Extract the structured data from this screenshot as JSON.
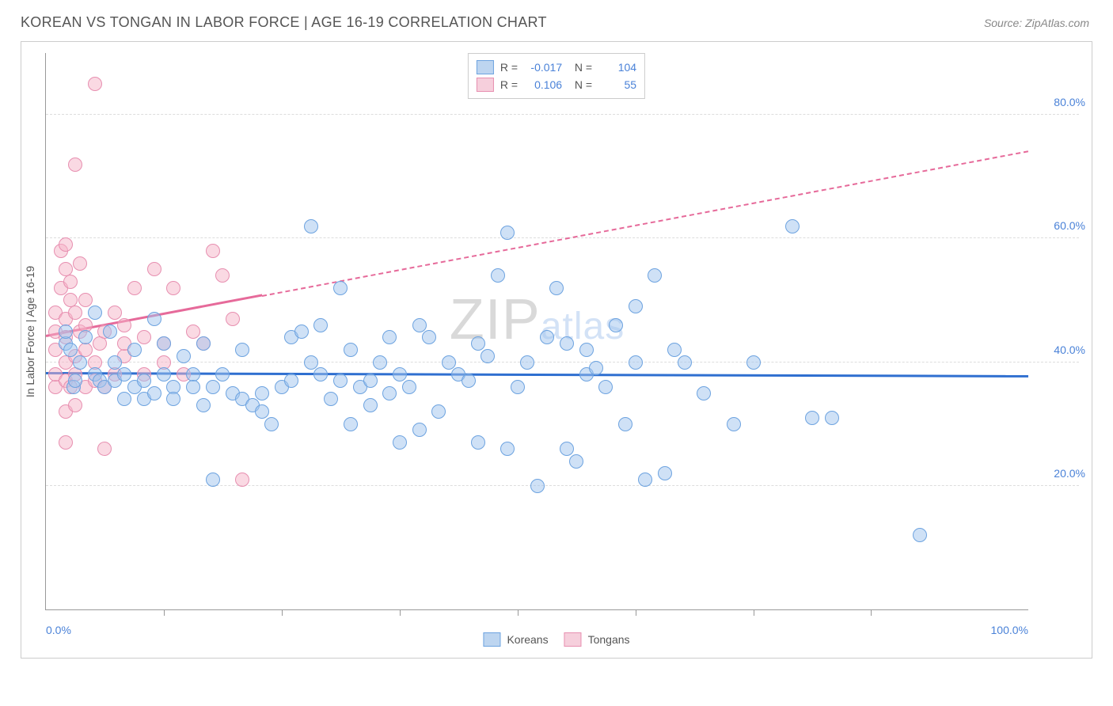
{
  "header": {
    "title": "KOREAN VS TONGAN IN LABOR FORCE | AGE 16-19 CORRELATION CHART",
    "source": "Source: ZipAtlas.com"
  },
  "chart": {
    "type": "scatter",
    "y_axis_label": "In Labor Force | Age 16-19",
    "xlim": [
      0,
      100
    ],
    "ylim": [
      0,
      90
    ],
    "x_tick_labels": {
      "0": "0.0%",
      "100": "100.0%"
    },
    "x_ticks_minor": [
      12,
      24,
      36,
      48,
      60,
      72,
      84
    ],
    "y_ticks": [
      20,
      40,
      60,
      80
    ],
    "y_tick_labels": {
      "20": "20.0%",
      "40": "40.0%",
      "60": "60.0%",
      "80": "80.0%"
    },
    "grid_color": "#dddddd",
    "background_color": "#ffffff",
    "series": {
      "korean": {
        "label": "Koreans",
        "fill_color": "rgba(159,195,237,0.5)",
        "stroke_color": "#6da3e0",
        "R": "-0.017",
        "N": "104",
        "regression": {
          "x1": 0,
          "y1": 38,
          "x2": 100,
          "y2": 37.5,
          "color": "#2f6fd0",
          "dashed_from_x": null
        },
        "points": [
          [
            2,
            43
          ],
          [
            2.5,
            42
          ],
          [
            2,
            45
          ],
          [
            2.8,
            36
          ],
          [
            3,
            37
          ],
          [
            3.5,
            40
          ],
          [
            4,
            44
          ],
          [
            5,
            38
          ],
          [
            5,
            48
          ],
          [
            5.5,
            37
          ],
          [
            6,
            36
          ],
          [
            6.5,
            45
          ],
          [
            7,
            37
          ],
          [
            7,
            40
          ],
          [
            8,
            38
          ],
          [
            8,
            34
          ],
          [
            9,
            42
          ],
          [
            9,
            36
          ],
          [
            10,
            37
          ],
          [
            10,
            34
          ],
          [
            11,
            35
          ],
          [
            11,
            47
          ],
          [
            12,
            43
          ],
          [
            12,
            38
          ],
          [
            13,
            36
          ],
          [
            13,
            34
          ],
          [
            14,
            41
          ],
          [
            15,
            38
          ],
          [
            15,
            36
          ],
          [
            16,
            43
          ],
          [
            16,
            33
          ],
          [
            17,
            36
          ],
          [
            17,
            21
          ],
          [
            18,
            38
          ],
          [
            19,
            35
          ],
          [
            20,
            42
          ],
          [
            20,
            34
          ],
          [
            21,
            33
          ],
          [
            22,
            35
          ],
          [
            22,
            32
          ],
          [
            23,
            30
          ],
          [
            24,
            36
          ],
          [
            25,
            37
          ],
          [
            25,
            44
          ],
          [
            26,
            45
          ],
          [
            27,
            62
          ],
          [
            27,
            40
          ],
          [
            28,
            38
          ],
          [
            28,
            46
          ],
          [
            29,
            34
          ],
          [
            30,
            52
          ],
          [
            30,
            37
          ],
          [
            31,
            42
          ],
          [
            31,
            30
          ],
          [
            32,
            36
          ],
          [
            33,
            37
          ],
          [
            34,
            40
          ],
          [
            35,
            44
          ],
          [
            35,
            35
          ],
          [
            36,
            27
          ],
          [
            36,
            38
          ],
          [
            37,
            36
          ],
          [
            38,
            46
          ],
          [
            38,
            29
          ],
          [
            39,
            44
          ],
          [
            40,
            32
          ],
          [
            41,
            40
          ],
          [
            42,
            38
          ],
          [
            43,
            37
          ],
          [
            44,
            27
          ],
          [
            44,
            43
          ],
          [
            45,
            41
          ],
          [
            46,
            54
          ],
          [
            47,
            61
          ],
          [
            48,
            36
          ],
          [
            49,
            40
          ],
          [
            50,
            20
          ],
          [
            51,
            44
          ],
          [
            52,
            52
          ],
          [
            53,
            43
          ],
          [
            54,
            24
          ],
          [
            55,
            38
          ],
          [
            55,
            42
          ],
          [
            56,
            39
          ],
          [
            57,
            36
          ],
          [
            58,
            46
          ],
          [
            59,
            30
          ],
          [
            60,
            49
          ],
          [
            60,
            40
          ],
          [
            61,
            21
          ],
          [
            62,
            54
          ],
          [
            63,
            22
          ],
          [
            64,
            42
          ],
          [
            65,
            40
          ],
          [
            67,
            35
          ],
          [
            70,
            30
          ],
          [
            72,
            40
          ],
          [
            76,
            62
          ],
          [
            78,
            31
          ],
          [
            80,
            31
          ],
          [
            89,
            12
          ],
          [
            47,
            26
          ],
          [
            53,
            26
          ],
          [
            33,
            33
          ]
        ]
      },
      "tongan": {
        "label": "Tongans",
        "fill_color": "rgba(245,180,200,0.5)",
        "stroke_color": "#e78fb0",
        "R": "0.106",
        "N": "55",
        "regression": {
          "x1": 0,
          "y1": 44,
          "x2": 100,
          "y2": 74,
          "color": "#e66a9a",
          "dashed_from_x": 22
        },
        "points": [
          [
            1,
            36
          ],
          [
            1,
            38
          ],
          [
            1,
            42
          ],
          [
            1,
            45
          ],
          [
            1,
            48
          ],
          [
            1.5,
            52
          ],
          [
            1.5,
            58
          ],
          [
            2,
            32
          ],
          [
            2,
            37
          ],
          [
            2,
            40
          ],
          [
            2,
            44
          ],
          [
            2,
            47
          ],
          [
            2,
            55
          ],
          [
            2,
            59
          ],
          [
            2.5,
            36
          ],
          [
            2.5,
            50
          ],
          [
            2.5,
            53
          ],
          [
            3,
            33
          ],
          [
            3,
            38
          ],
          [
            3,
            41
          ],
          [
            3,
            48
          ],
          [
            3,
            72
          ],
          [
            3.5,
            45
          ],
          [
            3.5,
            56
          ],
          [
            4,
            36
          ],
          [
            4,
            42
          ],
          [
            4,
            46
          ],
          [
            4,
            50
          ],
          [
            5,
            37
          ],
          [
            5,
            40
          ],
          [
            5,
            85
          ],
          [
            5.5,
            43
          ],
          [
            6,
            36
          ],
          [
            6,
            45
          ],
          [
            6,
            26
          ],
          [
            7,
            38
          ],
          [
            7,
            48
          ],
          [
            8,
            41
          ],
          [
            8,
            43
          ],
          [
            8,
            46
          ],
          [
            9,
            52
          ],
          [
            10,
            38
          ],
          [
            10,
            44
          ],
          [
            11,
            55
          ],
          [
            12,
            40
          ],
          [
            12,
            43
          ],
          [
            13,
            52
          ],
          [
            14,
            38
          ],
          [
            15,
            45
          ],
          [
            16,
            43
          ],
          [
            17,
            58
          ],
          [
            18,
            54
          ],
          [
            19,
            47
          ],
          [
            20,
            21
          ],
          [
            2,
            27
          ]
        ]
      }
    },
    "watermark": {
      "part1": "ZIP",
      "part2": "atlas"
    },
    "bottom_legend": [
      {
        "label": "Koreans",
        "fill": "#bdd5f0",
        "border": "#6da3e0"
      },
      {
        "label": "Tongans",
        "fill": "#f6cfdc",
        "border": "#e78fb0"
      }
    ],
    "stats_rows": [
      {
        "swatch_fill": "#bdd5f0",
        "swatch_border": "#6da3e0",
        "R": "-0.017",
        "N": "104"
      },
      {
        "swatch_fill": "#f6cfdc",
        "swatch_border": "#e78fb0",
        "R": "0.106",
        "N": "55"
      }
    ]
  }
}
